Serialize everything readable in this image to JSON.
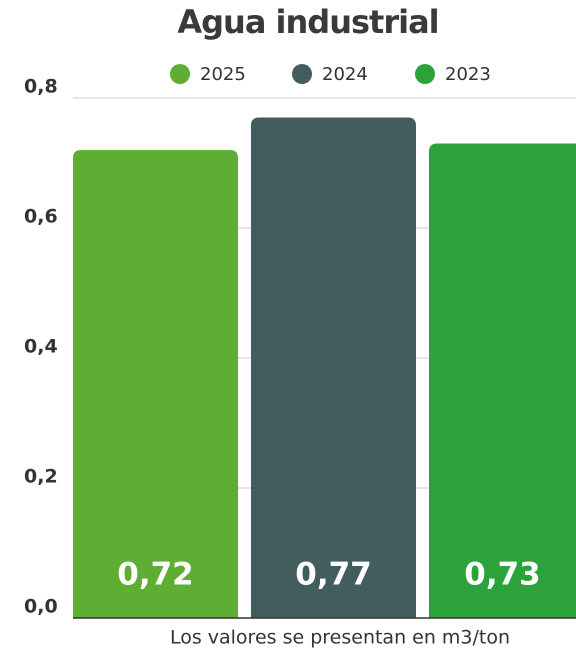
{
  "chart_data": {
    "type": "bar",
    "title": "Agua industrial",
    "note": "Los valores se presentan en m3/ton",
    "series": [
      {
        "name": "2025",
        "color": "#5eae34",
        "values": [
          0.72
        ],
        "value_labels": [
          "0,72"
        ]
      },
      {
        "name": "2024",
        "color": "#435c5d",
        "values": [
          0.77
        ],
        "value_labels": [
          "0,77"
        ]
      },
      {
        "name": "2023",
        "color": "#2ba33a",
        "values": [
          0.73
        ],
        "value_labels": [
          "0,73"
        ]
      }
    ],
    "ylim": [
      0,
      0.8
    ],
    "yticks": [
      {
        "value": 0,
        "label": "0,0"
      },
      {
        "value": 0.2,
        "label": "0,2"
      },
      {
        "value": 0.4,
        "label": "0,4"
      },
      {
        "value": 0.6,
        "label": "0,6"
      },
      {
        "value": 0.8,
        "label": "0,8"
      }
    ],
    "grid": true,
    "legend": "top"
  }
}
